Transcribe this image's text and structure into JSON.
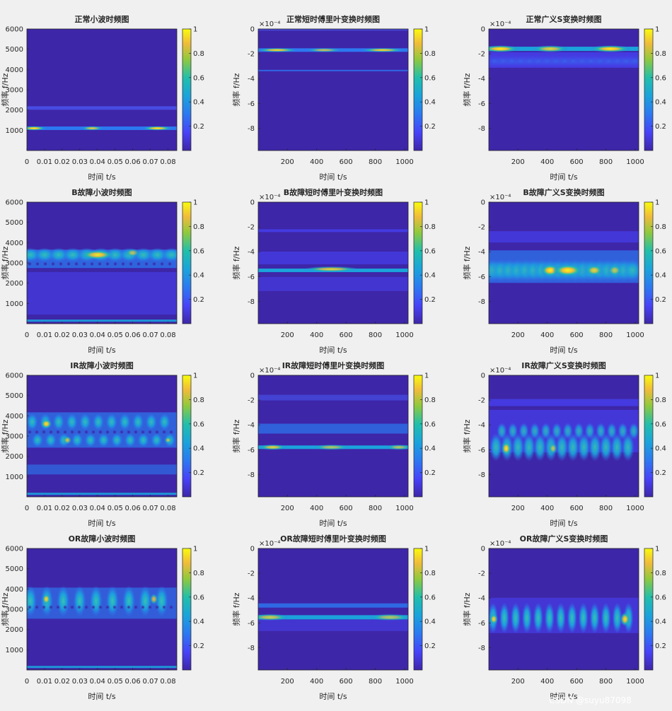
{
  "colors": {
    "background": "#f0f0f0",
    "map_low": "#3e26a8",
    "map_high": "#f9fb0e"
  },
  "watermark": "CSDN @suyu87098",
  "chart_data": [
    {
      "type": "heatmap",
      "title": "正常小波时频图",
      "xlabel": "时间 t/s",
      "ylabel": "频率 f/Hz",
      "xlim": [
        0,
        0.085
      ],
      "ylim": [
        0,
        6000
      ],
      "xticks": [
        "0",
        "0.01",
        "0.02",
        "0.03",
        "0.04",
        "0.05",
        "0.06",
        "0.07",
        "0.08"
      ],
      "xtick_vals": [
        0,
        0.01,
        0.02,
        0.03,
        0.04,
        0.05,
        0.06,
        0.07,
        0.08
      ],
      "yticks": [
        "1000",
        "2000",
        "3000",
        "4000",
        "5000",
        "6000"
      ],
      "ytick_vals": [
        1000,
        2000,
        3000,
        4000,
        5000,
        6000
      ],
      "exponent": "",
      "colorbar": {
        "ticks": [
          "0.2",
          "0.4",
          "0.6",
          "0.8",
          "1"
        ],
        "range": [
          0,
          1
        ]
      },
      "pattern": "normal-cwt"
    },
    {
      "type": "heatmap",
      "title": "正常短时傅里叶变换时频图",
      "xlabel": "时间 t/s",
      "ylabel": "频率 f/Hz",
      "xlim": [
        1,
        1024
      ],
      "ylim": [
        -9.8,
        0
      ],
      "xticks": [
        "200",
        "400",
        "600",
        "800",
        "1000"
      ],
      "xtick_vals": [
        200,
        400,
        600,
        800,
        1000
      ],
      "yticks": [
        "-8",
        "-6",
        "-4",
        "-2",
        "0"
      ],
      "ytick_vals": [
        -8,
        -6,
        -4,
        -2,
        0
      ],
      "exponent": "×10⁻⁴",
      "colorbar": {
        "ticks": [
          "0.2",
          "0.4",
          "0.6",
          "0.8",
          "1"
        ],
        "range": [
          0,
          1
        ]
      },
      "pattern": "normal-stft"
    },
    {
      "type": "heatmap",
      "title": "正常广义S变换时频图",
      "xlabel": "时间 t/s",
      "ylabel": "频率 f/Hz",
      "xlim": [
        1,
        1024
      ],
      "ylim": [
        -9.8,
        0
      ],
      "xticks": [
        "200",
        "400",
        "600",
        "800",
        "1000"
      ],
      "xtick_vals": [
        200,
        400,
        600,
        800,
        1000
      ],
      "yticks": [
        "-8",
        "-6",
        "-4",
        "-2",
        "0"
      ],
      "ytick_vals": [
        -8,
        -6,
        -4,
        -2,
        0
      ],
      "exponent": "×10⁻⁴",
      "colorbar": {
        "ticks": [
          "0.2",
          "0.4",
          "0.6",
          "0.8",
          "1"
        ],
        "range": [
          0,
          1
        ]
      },
      "pattern": "normal-gst"
    },
    {
      "type": "heatmap",
      "title": "B故障小波时频图",
      "xlabel": "时间 t/s",
      "ylabel": "频率 f/Hz",
      "xlim": [
        0,
        0.085
      ],
      "ylim": [
        0,
        6000
      ],
      "xticks": [
        "0",
        "0.01",
        "0.02",
        "0.03",
        "0.04",
        "0.05",
        "0.06",
        "0.07",
        "0.08"
      ],
      "xtick_vals": [
        0,
        0.01,
        0.02,
        0.03,
        0.04,
        0.05,
        0.06,
        0.07,
        0.08
      ],
      "yticks": [
        "1000",
        "2000",
        "3000",
        "4000",
        "5000",
        "6000"
      ],
      "ytick_vals": [
        1000,
        2000,
        3000,
        4000,
        5000,
        6000
      ],
      "exponent": "",
      "colorbar": {
        "ticks": [
          "0.2",
          "0.4",
          "0.6",
          "0.8",
          "1"
        ],
        "range": [
          0,
          1
        ]
      },
      "pattern": "b-cwt"
    },
    {
      "type": "heatmap",
      "title": "B故障短时傅里叶变换时频图",
      "xlabel": "时间 t/s",
      "ylabel": "频率 f/Hz",
      "xlim": [
        1,
        1024
      ],
      "ylim": [
        -9.8,
        0
      ],
      "xticks": [
        "200",
        "400",
        "600",
        "800",
        "1000"
      ],
      "xtick_vals": [
        200,
        400,
        600,
        800,
        1000
      ],
      "yticks": [
        "-8",
        "-6",
        "-4",
        "-2",
        "0"
      ],
      "ytick_vals": [
        -8,
        -6,
        -4,
        -2,
        0
      ],
      "exponent": "×10⁻⁴",
      "colorbar": {
        "ticks": [
          "0.2",
          "0.4",
          "0.6",
          "0.8",
          "1"
        ],
        "range": [
          0,
          1
        ]
      },
      "pattern": "b-stft"
    },
    {
      "type": "heatmap",
      "title": "B故障广义S变换时频图",
      "xlabel": "时间 t/s",
      "ylabel": "频率 f/Hz",
      "xlim": [
        1,
        1024
      ],
      "ylim": [
        -9.8,
        0
      ],
      "xticks": [
        "200",
        "400",
        "600",
        "800",
        "1000"
      ],
      "xtick_vals": [
        200,
        400,
        600,
        800,
        1000
      ],
      "yticks": [
        "-8",
        "-6",
        "-4",
        "-2",
        "0"
      ],
      "ytick_vals": [
        -8,
        -6,
        -4,
        -2,
        0
      ],
      "exponent": "×10⁻⁴",
      "colorbar": {
        "ticks": [
          "0.2",
          "0.4",
          "0.6",
          "0.8",
          "1"
        ],
        "range": [
          0,
          1
        ]
      },
      "pattern": "b-gst"
    },
    {
      "type": "heatmap",
      "title": "IR故障小波时频图",
      "xlabel": "时间 t/s",
      "ylabel": "频率 f/Hz",
      "xlim": [
        0,
        0.085
      ],
      "ylim": [
        0,
        6000
      ],
      "xticks": [
        "0",
        "0.01",
        "0.02",
        "0.03",
        "0.04",
        "0.05",
        "0.06",
        "0.07",
        "0.08"
      ],
      "xtick_vals": [
        0,
        0.01,
        0.02,
        0.03,
        0.04,
        0.05,
        0.06,
        0.07,
        0.08
      ],
      "yticks": [
        "1000",
        "2000",
        "3000",
        "4000",
        "5000",
        "6000"
      ],
      "ytick_vals": [
        1000,
        2000,
        3000,
        4000,
        5000,
        6000
      ],
      "exponent": "",
      "colorbar": {
        "ticks": [
          "0.2",
          "0.4",
          "0.6",
          "0.8",
          "1"
        ],
        "range": [
          0,
          1
        ]
      },
      "pattern": "ir-cwt"
    },
    {
      "type": "heatmap",
      "title": "IR故障短时傅里叶变换时频图",
      "xlabel": "时间 t/s",
      "ylabel": "频率 f/Hz",
      "xlim": [
        1,
        1024
      ],
      "ylim": [
        -9.8,
        0
      ],
      "xticks": [
        "200",
        "400",
        "600",
        "800",
        "1000"
      ],
      "xtick_vals": [
        200,
        400,
        600,
        800,
        1000
      ],
      "yticks": [
        "-8",
        "-6",
        "-4",
        "-2",
        "0"
      ],
      "ytick_vals": [
        -8,
        -6,
        -4,
        -2,
        0
      ],
      "exponent": "×10⁻⁴",
      "colorbar": {
        "ticks": [
          "0.2",
          "0.4",
          "0.6",
          "0.8",
          "1"
        ],
        "range": [
          0,
          1
        ]
      },
      "pattern": "ir-stft"
    },
    {
      "type": "heatmap",
      "title": "IR故障广义S变换时频图",
      "xlabel": "时间 t/s",
      "ylabel": "频率 f/Hz",
      "xlim": [
        1,
        1024
      ],
      "ylim": [
        -9.8,
        0
      ],
      "xticks": [
        "200",
        "400",
        "600",
        "800",
        "1000"
      ],
      "xtick_vals": [
        200,
        400,
        600,
        800,
        1000
      ],
      "yticks": [
        "-8",
        "-6",
        "-4",
        "-2",
        "0"
      ],
      "ytick_vals": [
        -8,
        -6,
        -4,
        -2,
        0
      ],
      "exponent": "×10⁻⁴",
      "colorbar": {
        "ticks": [
          "0.2",
          "0.4",
          "0.6",
          "0.8",
          "1"
        ],
        "range": [
          0,
          1
        ]
      },
      "pattern": "ir-gst"
    },
    {
      "type": "heatmap",
      "title": "OR故障小波时频图",
      "xlabel": "时间 t/s",
      "ylabel": "频率 f/Hz",
      "xlim": [
        0,
        0.085
      ],
      "ylim": [
        0,
        6000
      ],
      "xticks": [
        "0",
        "0.01",
        "0.02",
        "0.03",
        "0.04",
        "0.05",
        "0.06",
        "0.07",
        "0.08"
      ],
      "xtick_vals": [
        0,
        0.01,
        0.02,
        0.03,
        0.04,
        0.05,
        0.06,
        0.07,
        0.08
      ],
      "yticks": [
        "1000",
        "2000",
        "3000",
        "4000",
        "5000",
        "6000"
      ],
      "ytick_vals": [
        1000,
        2000,
        3000,
        4000,
        5000,
        6000
      ],
      "exponent": "",
      "colorbar": {
        "ticks": [
          "0.2",
          "0.4",
          "0.6",
          "0.8",
          "1"
        ],
        "range": [
          0,
          1
        ]
      },
      "pattern": "or-cwt"
    },
    {
      "type": "heatmap",
      "title": "OR故障短时傅里叶变换时频图",
      "xlabel": "时间 t/s",
      "ylabel": "频率 f/Hz",
      "xlim": [
        1,
        1024
      ],
      "ylim": [
        -9.8,
        0
      ],
      "xticks": [
        "200",
        "400",
        "600",
        "800",
        "1000"
      ],
      "xtick_vals": [
        200,
        400,
        600,
        800,
        1000
      ],
      "yticks": [
        "-8",
        "-6",
        "-4",
        "-2",
        "0"
      ],
      "ytick_vals": [
        -8,
        -6,
        -4,
        -2,
        0
      ],
      "exponent": "×10⁻⁴",
      "colorbar": {
        "ticks": [
          "0.2",
          "0.4",
          "0.6",
          "0.8",
          "1"
        ],
        "range": [
          0,
          1
        ]
      },
      "pattern": "or-stft"
    },
    {
      "type": "heatmap",
      "title": "OR故障广义S变换时频图",
      "xlabel": "时间 t/s",
      "ylabel": "频率 f/Hz",
      "xlim": [
        1,
        1024
      ],
      "ylim": [
        -9.8,
        0
      ],
      "xticks": [
        "200",
        "400",
        "600",
        "800",
        "1000"
      ],
      "xtick_vals": [
        200,
        400,
        600,
        800,
        1000
      ],
      "yticks": [
        "-8",
        "-6",
        "-4",
        "-2",
        "0"
      ],
      "ytick_vals": [
        -8,
        -6,
        -4,
        -2,
        0
      ],
      "exponent": "×10⁻⁴",
      "colorbar": {
        "ticks": [
          "0.2",
          "0.4",
          "0.6",
          "0.8",
          "1"
        ],
        "range": [
          0,
          1
        ]
      },
      "pattern": "or-gst"
    }
  ]
}
